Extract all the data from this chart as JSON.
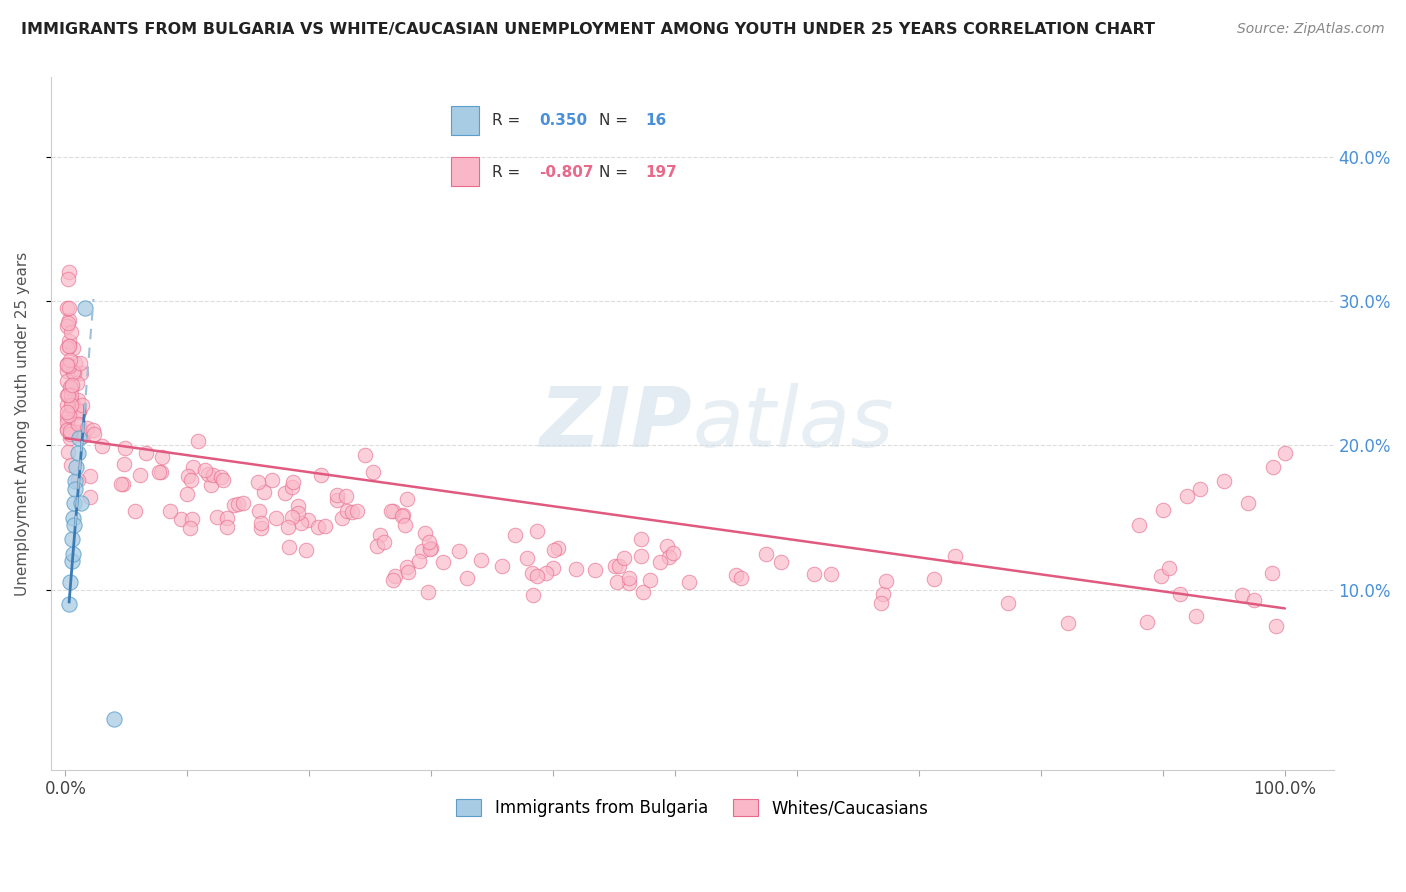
{
  "title": "IMMIGRANTS FROM BULGARIA VS WHITE/CAUCASIAN UNEMPLOYMENT AMONG YOUTH UNDER 25 YEARS CORRELATION CHART",
  "source": "Source: ZipAtlas.com",
  "ylabel": "Unemployment Among Youth under 25 years",
  "blue_color": "#a8cce4",
  "blue_edge_color": "#5b9ec9",
  "pink_color": "#f9b8c8",
  "pink_edge_color": "#e8698a",
  "blue_line_color": "#3a7ab5",
  "pink_line_color": "#e05a80",
  "blue_dash_color": "#a0c0d8",
  "grid_color": "#dddddd",
  "right_axis_color": "#4a90d9",
  "legend_blue_r": "R = ",
  "legend_blue_r_val": " 0.350",
  "legend_blue_n": "N = ",
  "legend_blue_n_val": " 16",
  "legend_pink_r": "R = ",
  "legend_pink_r_val": "-0.807",
  "legend_pink_n": "N = ",
  "legend_pink_n_val": "197",
  "watermark_zip": "ZIP",
  "watermark_atlas": "atlas",
  "x_min": 0.0,
  "x_max": 1.0,
  "y_min": 0.0,
  "y_max": 0.44
}
